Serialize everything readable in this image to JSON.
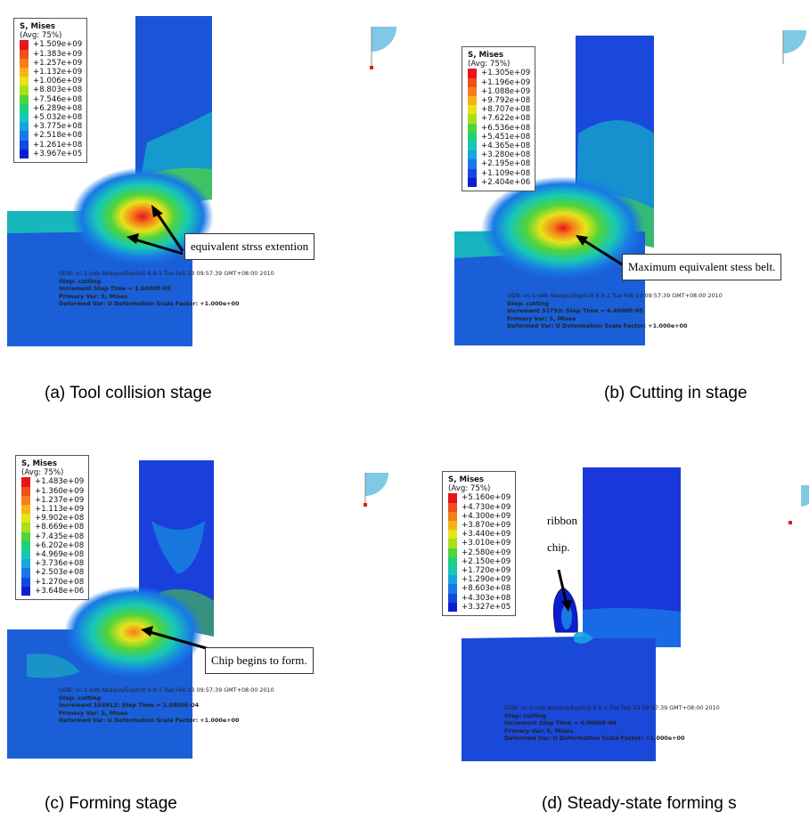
{
  "panels": [
    {
      "legend": {
        "title": "S, Mises",
        "subtitle": "(Avg: 75%)",
        "values": [
          "+1.509e+09",
          "+1.383e+09",
          "+1.257e+09",
          "+1.132e+09",
          "+1.006e+09",
          "+8.803e+08",
          "+7.546e+08",
          "+6.289e+08",
          "+5.032e+08",
          "+3.775e+08",
          "+2.518e+08",
          "+1.261e+08",
          "+3.967e+05"
        ]
      },
      "callout": "equivalent strss extention",
      "odb": [
        "ODB: vc-1.odb    Abaqus/Explicit 6.9-1    Tue Feb 23 09:57:39 GMT+08:00 2010",
        "Step: cutting",
        "Increment        Step Time =   1.6000E-05",
        "Primary Var: S, Mises",
        "Deformed Var: U   Deformation Scale Factor: +1.000e+00"
      ],
      "caption": "(a) Tool collision stage"
    },
    {
      "legend": {
        "title": "S, Mises",
        "subtitle": "(Avg: 75%)",
        "values": [
          "+1.305e+09",
          "+1.196e+09",
          "+1.088e+09",
          "+9.792e+08",
          "+8.707e+08",
          "+7.622e+08",
          "+6.536e+08",
          "+5.451e+08",
          "+4.365e+08",
          "+3.280e+08",
          "+2.195e+08",
          "+1.109e+08",
          "+2.404e+06"
        ]
      },
      "callout": "Maximum equivalent stess belt.",
      "odb": [
        "ODB: vc-1.odb    Abaqus/Explicit 6.9-1    Tue Feb 23 09:57:39 GMT+08:00 2010",
        "Step: cutting",
        "Increment    31793: Step Time =   6.4000E-05",
        "Primary Var: S, Mises",
        "Deformed Var: U   Deformation Scale Factor: +1.000e+00"
      ],
      "caption": "(b) Cutting in stage"
    },
    {
      "legend": {
        "title": "S, Mises",
        "subtitle": "(Avg: 75%)",
        "values": [
          "+1.483e+09",
          "+1.360e+09",
          "+1.237e+09",
          "+1.113e+09",
          "+9.902e+08",
          "+8.669e+08",
          "+7.435e+08",
          "+6.202e+08",
          "+4.969e+08",
          "+3.736e+08",
          "+2.503e+08",
          "+1.270e+08",
          "+3.648e+06"
        ]
      },
      "callout": "Chip begins to form.",
      "odb": [
        "ODB: vc-1.odb    Abaqus/Explicit 6.9-1    Tue Feb 23 09:57:39 GMT+08:00 2010",
        "Step: cutting",
        "Increment    103912: Step Time =   2.0800E-04",
        "Primary Var: S, Mises",
        "Deformed Var: U   Deformation Scale Factor: +1.000e+00"
      ],
      "caption": "(c) Forming stage"
    },
    {
      "legend": {
        "title": "S, Mises",
        "subtitle": "(Avg: 75%)",
        "values": [
          "+5.160e+09",
          "+4.730e+09",
          "+4.300e+09",
          "+3.870e+09",
          "+3.440e+09",
          "+3.010e+09",
          "+2.580e+09",
          "+2.150e+09",
          "+1.720e+09",
          "+1.290e+09",
          "+8.603e+08",
          "+4.303e+08",
          "+3.327e+05"
        ]
      },
      "note1": "ribbon",
      "note2": "chip.",
      "odb": [
        "ODB: vc-1.odb    Abaqus/Explicit 6.9-1    Tue Feb 23 09:57:39 GMT+08:00 2010",
        "Step: cutting",
        "Increment        Step Time =   4.0000E-04",
        "Primary Var: S, Mises",
        "Deformed Var: U   Deformation Scale Factor: +1.000e+00"
      ],
      "caption": "(d) Steady-state forming s"
    }
  ],
  "colors": {
    "scale": [
      "#e8141c",
      "#f0501a",
      "#f57e1a",
      "#f7b21a",
      "#e8e21a",
      "#a6e01a",
      "#4fd43a",
      "#1ed07a",
      "#17c8b8",
      "#18a4e0",
      "#1878e6",
      "#1448e0",
      "#0d1ed0"
    ],
    "tool_blue": "#1b3fe0",
    "work_blue": "#1a5ed8"
  }
}
